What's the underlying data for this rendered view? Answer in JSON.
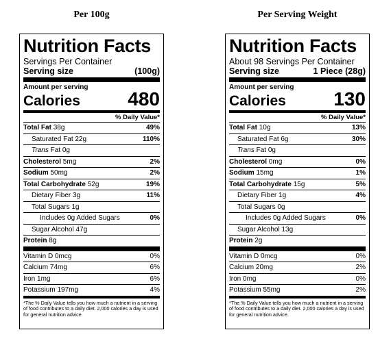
{
  "headings": {
    "left": "Per 100g",
    "right": "Per Serving Weight"
  },
  "labels": [
    {
      "title": "Nutrition Facts",
      "servings": "Servings Per Container",
      "serving_size_label": "Serving size",
      "serving_size_value": "(100g)",
      "amount_per_serving": "Amount per serving",
      "calories_label": "Calories",
      "calories_value": "480",
      "dv_header": "% Daily Value*",
      "total_fat": {
        "label": "Total Fat",
        "amount": "38g",
        "dv": "49%"
      },
      "saturated_fat": {
        "label": "Saturated Fat 22g",
        "dv": "110%"
      },
      "trans_fat": {
        "label": "Trans",
        "amount": "Fat 0g"
      },
      "cholesterol": {
        "label": "Cholesterol",
        "amount": "5mg",
        "dv": "2%"
      },
      "sodium": {
        "label": "Sodium",
        "amount": "50mg",
        "dv": "2%"
      },
      "total_carb": {
        "label": "Total Carbohydrate",
        "amount": "52g",
        "dv": "19%"
      },
      "dietary_fiber": {
        "label": "Dietary Fiber 3g",
        "dv": "11%"
      },
      "total_sugars": {
        "label": "Total Sugars 1g"
      },
      "added_sugars": {
        "label": "Includes 0g Added Sugars",
        "dv": "0%"
      },
      "sugar_alcohol": {
        "label": "Sugar Alcohol 47g"
      },
      "protein": {
        "label": "Protein",
        "amount": "8g"
      },
      "vitamin_d": {
        "label": "Vitamin D 0mcg",
        "dv": "0%"
      },
      "calcium": {
        "label": "Calcium 74mg",
        "dv": "6%"
      },
      "iron": {
        "label": "Iron 1mg",
        "dv": "6%"
      },
      "potassium": {
        "label": "Potassium 197mg",
        "dv": "4%"
      },
      "footnote": "*The % Daily Value tells you how much a nutrient in a serving of food contributes to a daily diet. 2,000 calories a day is used for general nutrition advice."
    },
    {
      "title": "Nutrition Facts",
      "servings": "About 98 Servings Per Container",
      "serving_size_label": "Serving size",
      "serving_size_value": "1 Piece (28g)",
      "amount_per_serving": "Amount per serving",
      "calories_label": "Calories",
      "calories_value": "130",
      "dv_header": "% Daily Value*",
      "total_fat": {
        "label": "Total Fat",
        "amount": "10g",
        "dv": "13%"
      },
      "saturated_fat": {
        "label": "Saturated Fat 6g",
        "dv": "30%"
      },
      "trans_fat": {
        "label": "Trans",
        "amount": "Fat 0g"
      },
      "cholesterol": {
        "label": "Cholesterol",
        "amount": "0mg",
        "dv": "0%"
      },
      "sodium": {
        "label": "Sodium",
        "amount": "15mg",
        "dv": "1%"
      },
      "total_carb": {
        "label": "Total Carbohydrate",
        "amount": "15g",
        "dv": "5%"
      },
      "dietary_fiber": {
        "label": "Dietary Fiber 1g",
        "dv": "4%"
      },
      "total_sugars": {
        "label": "Total Sugars 0g"
      },
      "added_sugars": {
        "label": "Includes 0g Added Sugars",
        "dv": "0%"
      },
      "sugar_alcohol": {
        "label": "Sugar Alcohol 13g"
      },
      "protein": {
        "label": "Protein",
        "amount": "2g"
      },
      "vitamin_d": {
        "label": "Vitamin D 0mcg",
        "dv": "0%"
      },
      "calcium": {
        "label": "Calcium 20mg",
        "dv": "2%"
      },
      "iron": {
        "label": "Iron 0mg",
        "dv": "0%"
      },
      "potassium": {
        "label": "Potassium 55mg",
        "dv": "2%"
      },
      "footnote": "*The % Daily Value tells you how much a nutrient in a serving of food contributes to a daily diet. 2,000 calories a day is used for general nutrition advice."
    }
  ]
}
